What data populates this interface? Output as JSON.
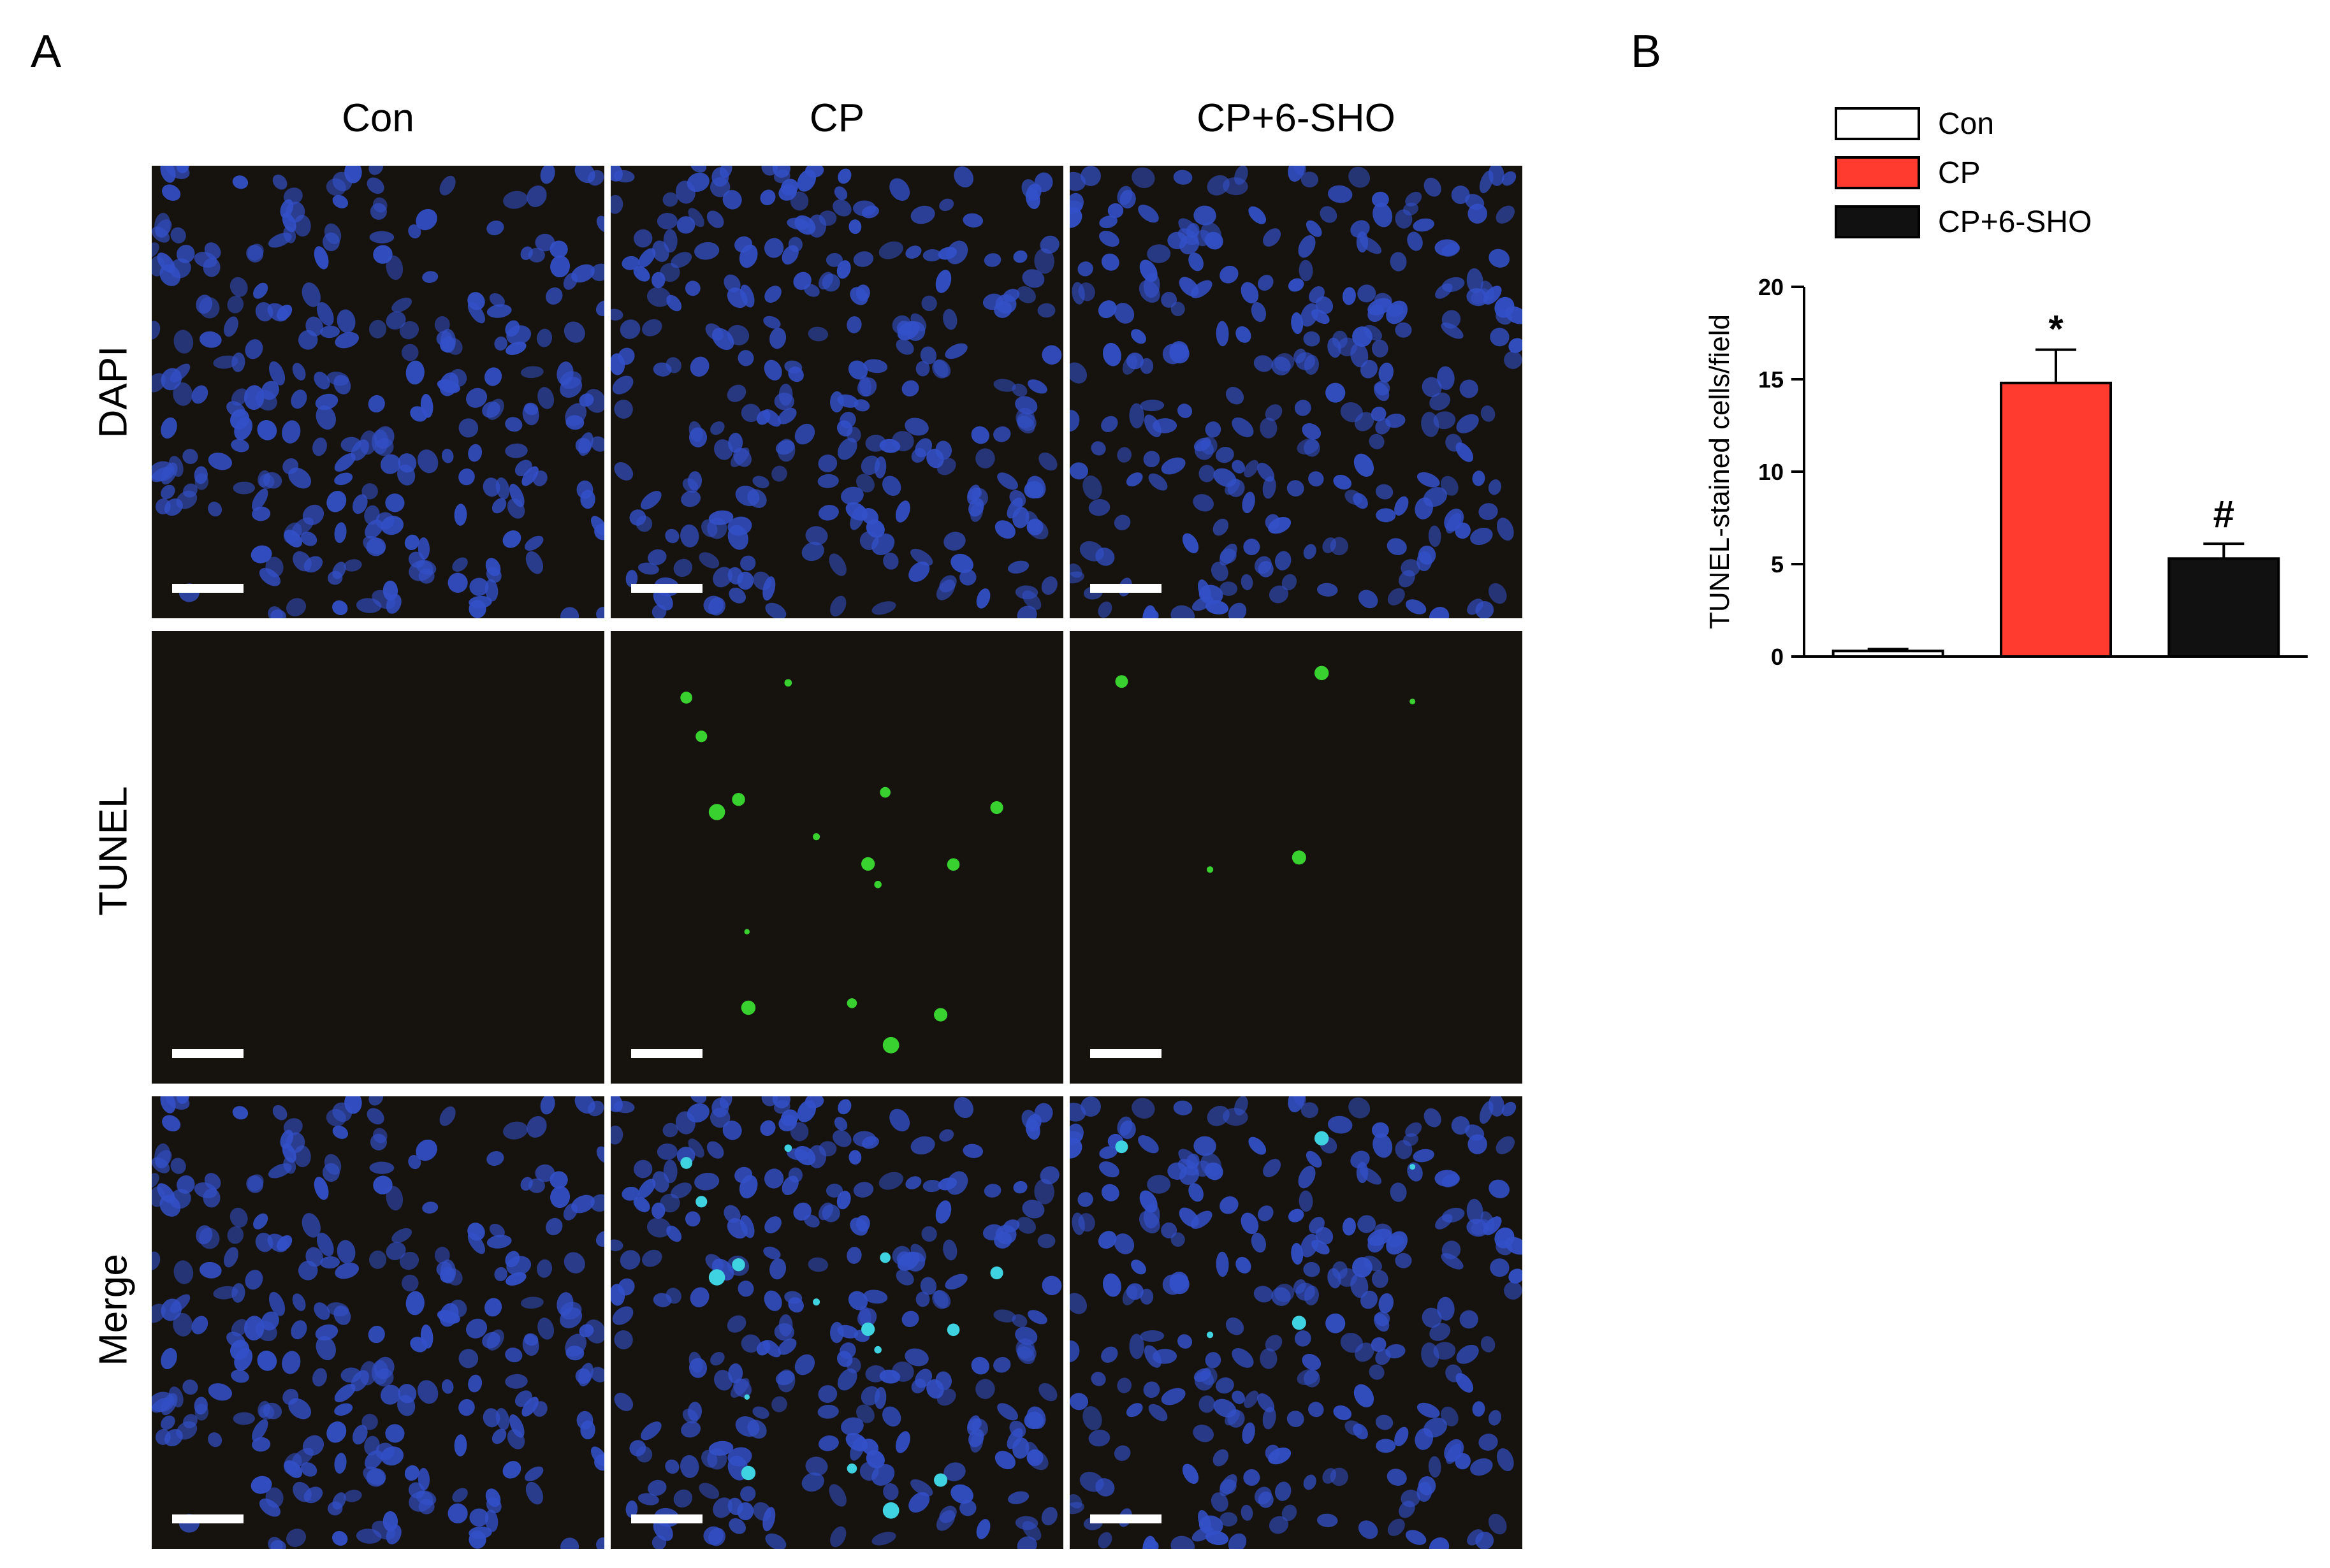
{
  "panels": {
    "a": "A",
    "b": "B"
  },
  "figure_a": {
    "columns": [
      "Con",
      "CP",
      "CP+6-SHO"
    ],
    "rows": [
      "DAPI",
      "TUNEL",
      "Merge"
    ]
  },
  "colors": {
    "background": "#16120d",
    "nuclei": "#3350c8",
    "tunel": "#39d12f",
    "merge_overlap": "#3fd2e0",
    "scalebar": "#ffffff"
  },
  "chart_data": {
    "type": "bar",
    "categories": [
      "Con",
      "CP",
      "CP+6-SHO"
    ],
    "values": [
      0.3,
      14.8,
      5.3
    ],
    "errors": [
      0.1,
      1.8,
      0.8
    ],
    "bar_colors": [
      "#ffffff",
      "#ff3b30",
      "#111111"
    ],
    "significance": [
      "",
      "*",
      "#"
    ],
    "ylabel": "TUNEL-stained cells/field",
    "xlabel": "",
    "ylim": [
      0,
      20
    ],
    "yticks": [
      0,
      5,
      10,
      15,
      20
    ],
    "legend": [
      "Con",
      "CP",
      "CP+6-SHO"
    ],
    "legend_position": "top",
    "grid": false
  }
}
